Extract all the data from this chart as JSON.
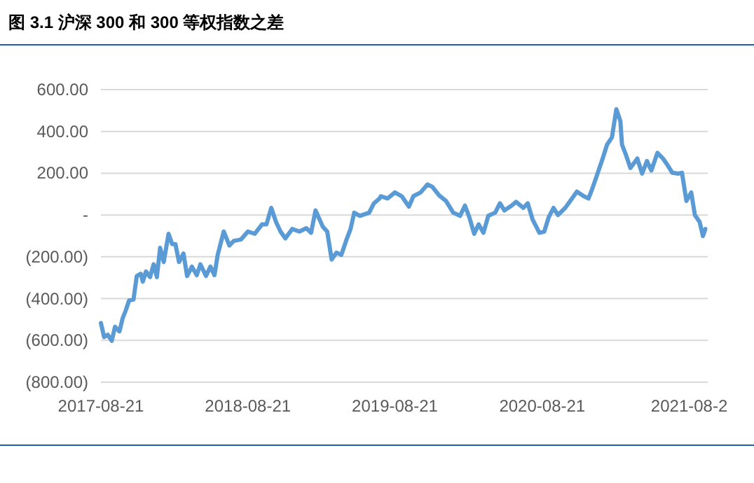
{
  "chart_data": {
    "type": "line",
    "title": "图 3.1 沪深 300 和 300 等权指数之差",
    "x": [
      "2017-08-21",
      "2017-08-29",
      "2017-09-07",
      "2017-09-17",
      "2017-09-25",
      "2017-10-06",
      "2017-10-14",
      "2017-10-21",
      "2017-10-30",
      "2017-11-10",
      "2017-11-18",
      "2017-11-28",
      "2017-12-03",
      "2017-12-11",
      "2017-12-21",
      "2017-12-30",
      "2018-01-07",
      "2018-01-15",
      "2018-01-24",
      "2018-02-05",
      "2018-02-14",
      "2018-02-22",
      "2018-03-03",
      "2018-03-14",
      "2018-03-23",
      "2018-04-04",
      "2018-04-16",
      "2018-04-25",
      "2018-05-09",
      "2018-05-20",
      "2018-05-30",
      "2018-06-07",
      "2018-06-22",
      "2018-07-06",
      "2018-07-17",
      "2018-08-04",
      "2018-08-21",
      "2018-09-07",
      "2018-09-25",
      "2018-10-06",
      "2018-10-18",
      "2018-10-30",
      "2018-11-10",
      "2018-11-22",
      "2018-12-09",
      "2018-12-27",
      "2019-01-13",
      "2019-01-25",
      "2019-02-05",
      "2019-02-23",
      "2019-03-06",
      "2019-03-17",
      "2019-03-29",
      "2019-04-10",
      "2019-04-24",
      "2019-05-03",
      "2019-05-12",
      "2019-05-26",
      "2019-06-18",
      "2019-06-30",
      "2019-07-14",
      "2019-07-17",
      "2019-08-03",
      "2019-08-21",
      "2019-09-07",
      "2019-09-25",
      "2019-10-06",
      "2019-10-24",
      "2019-11-10",
      "2019-11-22",
      "2019-12-09",
      "2019-12-26",
      "2020-01-13",
      "2020-01-30",
      "2020-02-11",
      "2020-02-22",
      "2020-03-05",
      "2020-03-16",
      "2020-03-28",
      "2020-04-09",
      "2020-04-26",
      "2020-05-08",
      "2020-05-19",
      "2020-06-06",
      "2020-06-17",
      "2020-07-05",
      "2020-07-16",
      "2020-07-28",
      "2020-08-14",
      "2020-08-26",
      "2020-09-06",
      "2020-09-18",
      "2020-09-29",
      "2020-10-17",
      "2020-11-03",
      "2020-11-15",
      "2020-12-02",
      "2020-12-14",
      "2020-12-25",
      "2021-01-06",
      "2021-01-18",
      "2021-01-29",
      "2021-02-10",
      "2021-02-21",
      "2021-03-03",
      "2021-03-07",
      "2021-03-16",
      "2021-03-28",
      "2021-04-14",
      "2021-04-26",
      "2021-05-08",
      "2021-05-19",
      "2021-06-03",
      "2021-06-17",
      "2021-06-29",
      "2021-07-10",
      "2021-07-24",
      "2021-08-03",
      "2021-08-14",
      "2021-08-26",
      "2021-09-04",
      "2021-09-16",
      "2021-09-24",
      "2021-09-30"
    ],
    "series": [
      {
        "color": "#5b9bd5",
        "values": [
          -517,
          -584,
          -573,
          -602,
          -535,
          -557,
          -494,
          -460,
          -409,
          -404,
          -292,
          -281,
          -319,
          -270,
          -297,
          -236,
          -297,
          -157,
          -225,
          -90,
          -139,
          -139,
          -225,
          -184,
          -292,
          -247,
          -288,
          -236,
          -292,
          -247,
          -288,
          -191,
          -79,
          -146,
          -124,
          -117,
          -79,
          -90,
          -45,
          -45,
          34,
          -34,
          -79,
          -112,
          -67,
          -79,
          -63,
          -85,
          22,
          -56,
          -79,
          -213,
          -180,
          -191,
          -112,
          -67,
          11,
          -4,
          11,
          56,
          79,
          90,
          79,
          108,
          90,
          40,
          90,
          108,
          146,
          135,
          94,
          67,
          11,
          -4,
          45,
          -11,
          -90,
          -45,
          -85,
          -4,
          11,
          56,
          22,
          45,
          63,
          34,
          56,
          -22,
          -85,
          -79,
          -11,
          34,
          0,
          34,
          79,
          112,
          90,
          79,
          135,
          202,
          270,
          337,
          371,
          506,
          449,
          337,
          292,
          225,
          270,
          198,
          258,
          213,
          297,
          270,
          236,
          202,
          198,
          202,
          67,
          108,
          0,
          -34,
          -101,
          -67
        ]
      }
    ],
    "xlim": [
      "2017-08-21",
      "2021-10-06"
    ],
    "xticks": [
      {
        "value": "2017-08-21",
        "label": "2017-08-21"
      },
      {
        "value": "2018-08-21",
        "label": "2018-08-21"
      },
      {
        "value": "2019-08-21",
        "label": "2019-08-21"
      },
      {
        "value": "2020-08-21",
        "label": "2020-08-21"
      },
      {
        "value": "2021-08-21",
        "label": "2021-08-2"
      }
    ],
    "ylim": [
      -800,
      600
    ],
    "yticks": [
      {
        "value": 600,
        "label": "600.00"
      },
      {
        "value": 400,
        "label": "400.00"
      },
      {
        "value": 200,
        "label": "200.00"
      },
      {
        "value": 0,
        "label": "-"
      },
      {
        "value": -200,
        "label": "(200.00)"
      },
      {
        "value": -400,
        "label": "(400.00)"
      },
      {
        "value": -600,
        "label": "(600.00)"
      },
      {
        "value": -800,
        "label": "(800.00)"
      }
    ],
    "grid": "y",
    "marker": "none",
    "line_style": "solid"
  }
}
